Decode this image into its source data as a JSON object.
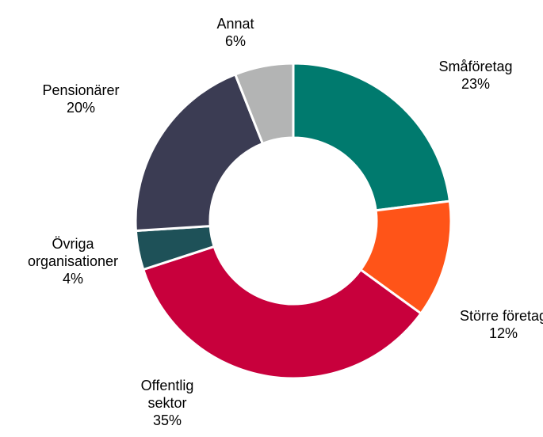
{
  "chart_data": {
    "type": "donut",
    "categories": [
      "Småföretag",
      "Större företag",
      "Offentlig sektor",
      "Övriga organisationer",
      "Pensionärer",
      "Annat"
    ],
    "values": [
      23,
      12,
      35,
      4,
      20,
      6
    ],
    "value_labels": [
      "23%",
      "12%",
      "35%",
      "4%",
      "20%",
      "6%"
    ],
    "colors": [
      "#007a6e",
      "#ff5418",
      "#c8003c",
      "#1e5158",
      "#3b3c53",
      "#b3b4b4"
    ]
  }
}
